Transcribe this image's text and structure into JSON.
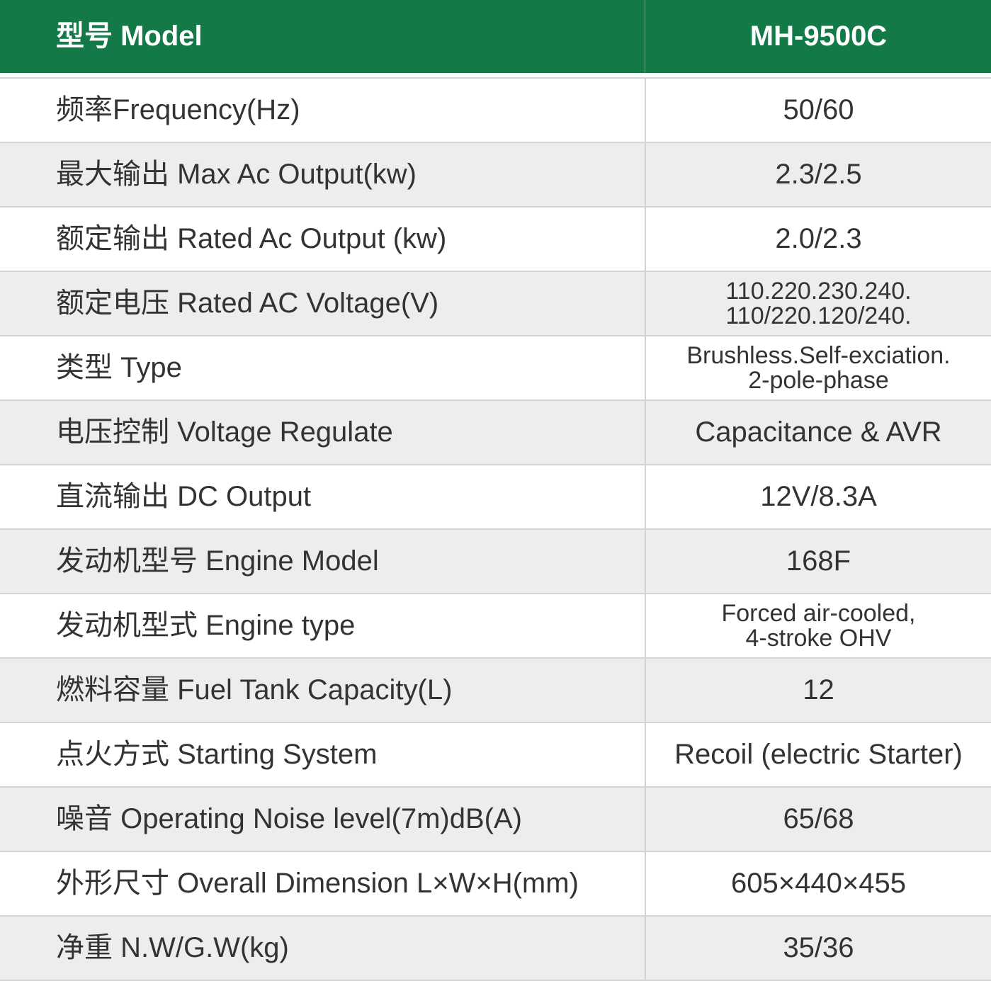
{
  "header": {
    "label": "型号 Model",
    "value": "MH-9500C"
  },
  "colors": {
    "header_bg": "#137a47",
    "alt_row": "#ededed"
  },
  "rows": [
    {
      "label": "频率Frequency(Hz)",
      "value": [
        "50/60"
      ]
    },
    {
      "label": "最大输出 Max Ac Output(kw)",
      "value": [
        "2.3/2.5"
      ]
    },
    {
      "label": "额定输出 Rated Ac Output (kw)",
      "value": [
        "2.0/2.3"
      ]
    },
    {
      "label": "额定电压 Rated AC Voltage(V)",
      "value": [
        "110.220.230.240.",
        "110/220.120/240."
      ]
    },
    {
      "label": "类型 Type",
      "value": [
        "Brushless.Self-exciation.",
        "2-pole-phase"
      ]
    },
    {
      "label": "电压控制 Voltage Regulate",
      "value": [
        "Capacitance & AVR"
      ]
    },
    {
      "label": "直流输出 DC Output",
      "value": [
        "12V/8.3A"
      ]
    },
    {
      "label": "发动机型号 Engine Model",
      "value": [
        "168F"
      ]
    },
    {
      "label": "发动机型式 Engine type",
      "value": [
        "Forced air-cooled,",
        "4-stroke OHV"
      ]
    },
    {
      "label": "燃料容量 Fuel Tank Capacity(L)",
      "value": [
        "12"
      ]
    },
    {
      "label": "点火方式 Starting System",
      "value": [
        "Recoil (electric Starter)"
      ]
    },
    {
      "label": "噪音 Operating Noise level(7m)dB(A)",
      "value": [
        "65/68"
      ]
    },
    {
      "label": "外形尺寸 Overall Dimension L×W×H(mm)",
      "value": [
        "605×440×455"
      ]
    },
    {
      "label": "净重 N.W/G.W(kg)",
      "value": [
        "35/36"
      ]
    }
  ]
}
